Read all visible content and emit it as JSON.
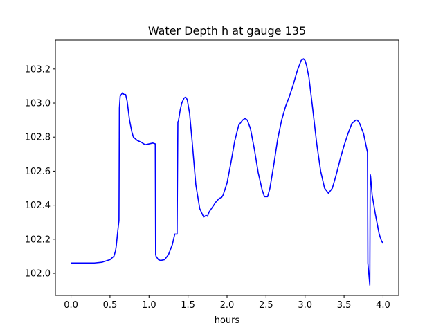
{
  "chart_data": {
    "type": "line",
    "title": "Water Depth h at gauge 135",
    "xlabel": "hours",
    "ylabel": "",
    "xlim": [
      -0.2,
      4.2
    ],
    "ylim": [
      101.87,
      103.37
    ],
    "xticks": [
      0.0,
      0.5,
      1.0,
      1.5,
      2.0,
      2.5,
      3.0,
      3.5,
      4.0
    ],
    "xtick_labels": [
      "0.0",
      "0.5",
      "1.0",
      "1.5",
      "2.0",
      "2.5",
      "3.0",
      "3.5",
      "4.0"
    ],
    "yticks": [
      102.0,
      102.2,
      102.4,
      102.6,
      102.8,
      103.0,
      103.2
    ],
    "ytick_labels": [
      "102.0",
      "102.2",
      "102.4",
      "102.6",
      "102.8",
      "103.0",
      "103.2"
    ],
    "grid": false,
    "series": [
      {
        "color": "#0000ff",
        "x": [
          0.0,
          0.1,
          0.2,
          0.3,
          0.4,
          0.5,
          0.55,
          0.57,
          0.58,
          0.6,
          0.615,
          0.62,
          0.63,
          0.66,
          0.68,
          0.7,
          0.72,
          0.75,
          0.78,
          0.8,
          0.85,
          0.9,
          0.95,
          1.0,
          1.05,
          1.08,
          1.085,
          1.09,
          1.12,
          1.15,
          1.2,
          1.25,
          1.3,
          1.33,
          1.36,
          1.37,
          1.375,
          1.4,
          1.42,
          1.45,
          1.47,
          1.49,
          1.52,
          1.55,
          1.6,
          1.65,
          1.7,
          1.73,
          1.75,
          1.77,
          1.8,
          1.83,
          1.85,
          1.88,
          1.9,
          1.93,
          1.95,
          2.0,
          2.05,
          2.1,
          2.15,
          2.2,
          2.23,
          2.26,
          2.3,
          2.35,
          2.4,
          2.45,
          2.48,
          2.52,
          2.55,
          2.6,
          2.65,
          2.7,
          2.75,
          2.8,
          2.85,
          2.9,
          2.95,
          2.98,
          3.0,
          3.02,
          3.05,
          3.1,
          3.15,
          3.2,
          3.25,
          3.3,
          3.35,
          3.4,
          3.45,
          3.5,
          3.55,
          3.6,
          3.65,
          3.67,
          3.7,
          3.75,
          3.8,
          3.805,
          3.83,
          3.835,
          3.84,
          3.86,
          3.9,
          3.95,
          3.98,
          4.0
        ],
        "y": [
          102.06,
          102.06,
          102.06,
          102.06,
          102.065,
          102.08,
          102.1,
          102.13,
          102.16,
          102.25,
          102.31,
          102.97,
          103.04,
          103.06,
          103.05,
          103.05,
          103.01,
          102.9,
          102.83,
          102.8,
          102.78,
          102.77,
          102.755,
          102.76,
          102.765,
          102.76,
          102.11,
          102.1,
          102.08,
          102.075,
          102.08,
          102.11,
          102.17,
          102.23,
          102.23,
          102.89,
          102.89,
          102.96,
          103.0,
          103.03,
          103.035,
          103.02,
          102.94,
          102.79,
          102.52,
          102.38,
          102.33,
          102.34,
          102.335,
          102.36,
          102.38,
          102.4,
          102.415,
          102.43,
          102.44,
          102.445,
          102.46,
          102.53,
          102.65,
          102.78,
          102.87,
          102.9,
          102.91,
          102.9,
          102.85,
          102.73,
          102.59,
          102.49,
          102.45,
          102.45,
          102.5,
          102.64,
          102.79,
          102.9,
          102.98,
          103.04,
          103.11,
          103.19,
          103.25,
          103.26,
          103.25,
          103.22,
          103.15,
          102.96,
          102.76,
          102.6,
          102.5,
          102.47,
          102.5,
          102.58,
          102.67,
          102.75,
          102.82,
          102.88,
          102.9,
          102.9,
          102.88,
          102.82,
          102.71,
          102.06,
          101.93,
          102.58,
          102.57,
          102.46,
          102.35,
          102.23,
          102.19,
          102.175
        ]
      }
    ]
  }
}
